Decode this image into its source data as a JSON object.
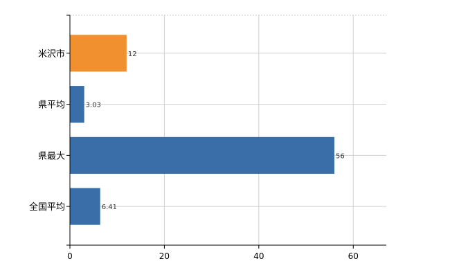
{
  "chart_data": {
    "type": "bar",
    "orientation": "horizontal",
    "categories": [
      "米沢市",
      "県平均",
      "県最大",
      "全国平均"
    ],
    "values": [
      12,
      3.03,
      56,
      6.41
    ],
    "value_labels": [
      "12",
      "3.03",
      "56",
      "6.41"
    ],
    "bar_colors": [
      "#f0902e",
      "#3a6ea8",
      "#3a6ea8",
      "#3a6ea8"
    ],
    "highlight_color": "#f0902e",
    "base_color": "#3a6ea8",
    "xlim": [
      0,
      67
    ],
    "x_ticks": [
      0,
      20,
      40,
      60
    ],
    "x_tick_labels": [
      "0",
      "20",
      "40",
      "60"
    ],
    "grid": true,
    "title": "",
    "xlabel": "",
    "ylabel": ""
  }
}
